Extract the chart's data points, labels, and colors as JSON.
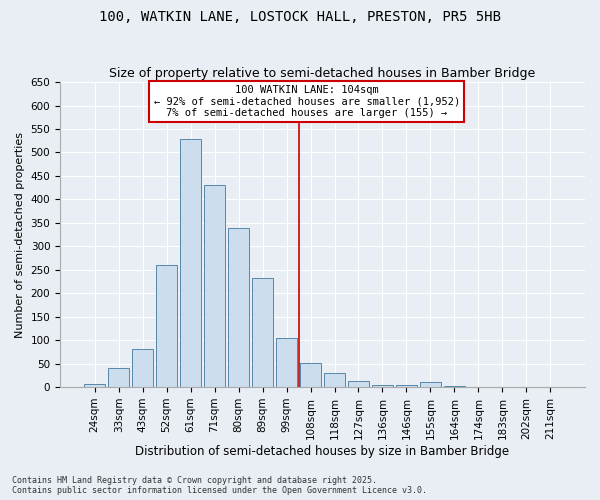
{
  "title_line1": "100, WATKIN LANE, LOSTOCK HALL, PRESTON, PR5 5HB",
  "title_line2": "Size of property relative to semi-detached houses in Bamber Bridge",
  "xlabel": "Distribution of semi-detached houses by size in Bamber Bridge",
  "ylabel": "Number of semi-detached properties",
  "footer_line1": "Contains HM Land Registry data © Crown copyright and database right 2025.",
  "footer_line2": "Contains public sector information licensed under the Open Government Licence v3.0.",
  "categories": [
    "24sqm",
    "33sqm",
    "43sqm",
    "52sqm",
    "61sqm",
    "71sqm",
    "80sqm",
    "89sqm",
    "99sqm",
    "108sqm",
    "118sqm",
    "127sqm",
    "136sqm",
    "146sqm",
    "155sqm",
    "164sqm",
    "174sqm",
    "183sqm",
    "202sqm",
    "211sqm"
  ],
  "values": [
    7,
    40,
    82,
    260,
    528,
    430,
    340,
    232,
    105,
    52,
    30,
    12,
    5,
    4,
    10,
    3,
    1,
    1,
    1,
    1
  ],
  "bar_color": "#ccdded",
  "bar_edge_color": "#5588aa",
  "vline_x_index": 8.5,
  "vline_color": "#cc0000",
  "annotation_title": "100 WATKIN LANE: 104sqm",
  "annotation_line2": "← 92% of semi-detached houses are smaller (1,952)",
  "annotation_line3": "7% of semi-detached houses are larger (155) →",
  "annotation_box_color": "#cc0000",
  "annotation_bg": "#ffffff",
  "ylim": [
    0,
    650
  ],
  "yticks": [
    0,
    50,
    100,
    150,
    200,
    250,
    300,
    350,
    400,
    450,
    500,
    550,
    600,
    650
  ],
  "bg_color": "#e8eef4",
  "title_fontsize": 10,
  "subtitle_fontsize": 9,
  "axis_label_fontsize": 8.5,
  "tick_fontsize": 7.5,
  "annotation_fontsize": 7.5,
  "footer_fontsize": 6,
  "ylabel_fontsize": 8
}
